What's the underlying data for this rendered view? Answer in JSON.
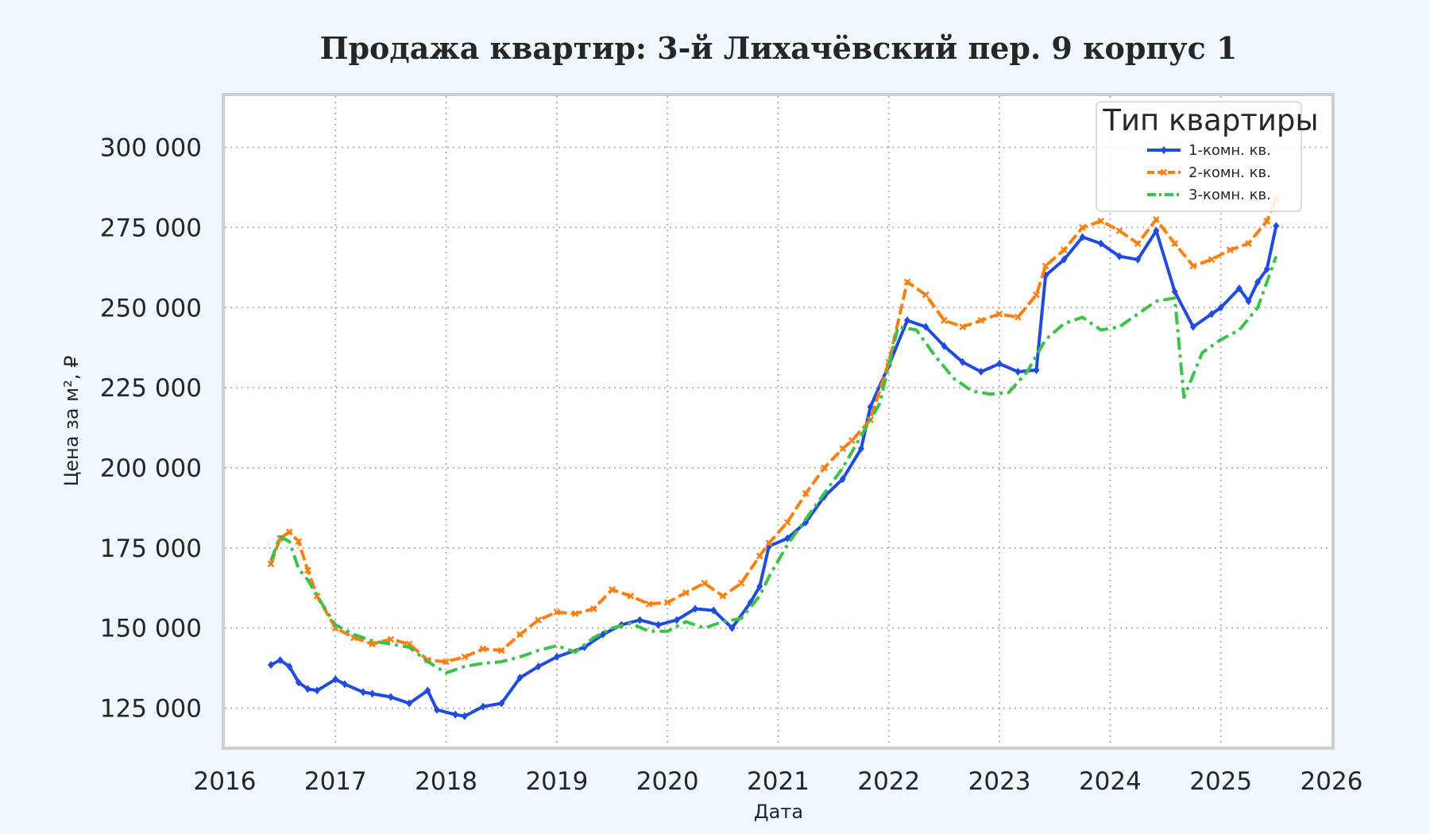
{
  "chart_data": {
    "type": "line",
    "title": "Продажа квартир: 3-й Лихачёвский пер. 9 корпус 1",
    "xlabel": "Дата",
    "ylabel": "Цена за м², ₽",
    "xlim": [
      "2016-01-01",
      "2026-01-01"
    ],
    "ylim": [
      113000,
      316000
    ],
    "x_ticks": [
      "2016",
      "2017",
      "2018",
      "2019",
      "2020",
      "2021",
      "2022",
      "2023",
      "2024",
      "2025",
      "2026"
    ],
    "y_ticks": [
      {
        "value": 125000,
        "label": "125 000"
      },
      {
        "value": 150000,
        "label": "150 000"
      },
      {
        "value": 175000,
        "label": "175 000"
      },
      {
        "value": 200000,
        "label": "200 000"
      },
      {
        "value": 225000,
        "label": "225 000"
      },
      {
        "value": 250000,
        "label": "250 000"
      },
      {
        "value": 275000,
        "label": "275 000"
      },
      {
        "value": 300000,
        "label": "300 000"
      }
    ],
    "grid": true,
    "legend": {
      "title": "Тип квартиры",
      "position": "top-right"
    },
    "series": [
      {
        "name": "1-комн. кв.",
        "color": "#1f4be0",
        "style": "solid",
        "marker": "diamond",
        "x": [
          "2016-06",
          "2016-07",
          "2016-08",
          "2016-09",
          "2016-10",
          "2016-11",
          "2017-01",
          "2017-02",
          "2017-04",
          "2017-05",
          "2017-07",
          "2017-09",
          "2017-11",
          "2017-12",
          "2018-02",
          "2018-03",
          "2018-05",
          "2018-07",
          "2018-09",
          "2018-11",
          "2019-01",
          "2019-04",
          "2019-06",
          "2019-08",
          "2019-10",
          "2019-12",
          "2020-02",
          "2020-04",
          "2020-06",
          "2020-08",
          "2020-10",
          "2020-11",
          "2020-12",
          "2021-02",
          "2021-04",
          "2021-06",
          "2021-08",
          "2021-10",
          "2021-11",
          "2022-01",
          "2022-03",
          "2022-05",
          "2022-07",
          "2022-09",
          "2022-11",
          "2023-01",
          "2023-03",
          "2023-05",
          "2023-06",
          "2023-08",
          "2023-10",
          "2023-12",
          "2024-02",
          "2024-04",
          "2024-06",
          "2024-08",
          "2024-10",
          "2024-12",
          "2025-01",
          "2025-03",
          "2025-04",
          "2025-05",
          "2025-06",
          "2025-07"
        ],
        "values": [
          138500,
          140000,
          138000,
          133000,
          131000,
          130500,
          134000,
          132500,
          130000,
          129500,
          128500,
          126500,
          130500,
          124500,
          123000,
          122500,
          125500,
          126500,
          134500,
          138000,
          141000,
          144000,
          148000,
          151000,
          152500,
          151000,
          152500,
          156000,
          155500,
          150000,
          158000,
          163000,
          175500,
          178000,
          183000,
          191000,
          196500,
          206000,
          219000,
          232000,
          246000,
          244000,
          238000,
          233000,
          230000,
          232500,
          230000,
          230500,
          260000,
          265000,
          272000,
          270000,
          266000,
          265000,
          274000,
          255000,
          244000,
          248000,
          250000,
          256000,
          252000,
          258000,
          262000,
          275500
        ]
      },
      {
        "name": "2-комн. кв.",
        "color": "#ff7f0e",
        "style": "dashed",
        "marker": "x",
        "x": [
          "2016-06",
          "2016-07",
          "2016-08",
          "2016-09",
          "2016-10",
          "2016-11",
          "2017-01",
          "2017-03",
          "2017-05",
          "2017-07",
          "2017-09",
          "2017-11",
          "2018-01",
          "2018-03",
          "2018-05",
          "2018-07",
          "2018-09",
          "2018-11",
          "2019-01",
          "2019-03",
          "2019-05",
          "2019-07",
          "2019-09",
          "2019-11",
          "2020-01",
          "2020-03",
          "2020-05",
          "2020-07",
          "2020-09",
          "2020-11",
          "2020-12",
          "2021-02",
          "2021-04",
          "2021-06",
          "2021-08",
          "2021-09",
          "2021-11",
          "2022-01",
          "2022-03",
          "2022-05",
          "2022-07",
          "2022-09",
          "2022-11",
          "2023-01",
          "2023-03",
          "2023-05",
          "2023-06",
          "2023-08",
          "2023-10",
          "2023-12",
          "2024-02",
          "2024-04",
          "2024-06",
          "2024-08",
          "2024-10",
          "2024-12",
          "2025-02",
          "2025-04",
          "2025-06",
          "2025-07"
        ],
        "values": [
          170000,
          178000,
          180000,
          177000,
          168000,
          160000,
          150000,
          147000,
          145000,
          146500,
          145000,
          140000,
          139500,
          141000,
          143500,
          143000,
          148000,
          152500,
          155000,
          154500,
          156000,
          162000,
          160000,
          157500,
          158000,
          161000,
          164000,
          160000,
          164000,
          172500,
          176500,
          183000,
          192000,
          200000,
          206000,
          208500,
          215000,
          233000,
          258000,
          254000,
          246000,
          244000,
          246000,
          248000,
          247000,
          254000,
          263000,
          268000,
          275000,
          277000,
          274000,
          270000,
          277500,
          270000,
          263000,
          265000,
          268000,
          270000,
          277000,
          284000
        ]
      },
      {
        "name": "3-комн. кв.",
        "color": "#3cc24a",
        "style": "dashdot",
        "marker": "none",
        "x": [
          "2016-06",
          "2016-07",
          "2016-08",
          "2016-09",
          "2016-10",
          "2016-11",
          "2017-01",
          "2017-03",
          "2017-05",
          "2017-07",
          "2017-09",
          "2017-11",
          "2018-01",
          "2018-03",
          "2018-05",
          "2018-07",
          "2018-09",
          "2018-11",
          "2019-01",
          "2019-03",
          "2019-05",
          "2019-07",
          "2019-09",
          "2019-11",
          "2020-01",
          "2020-03",
          "2020-05",
          "2020-07",
          "2020-09",
          "2020-11",
          "2020-12",
          "2021-02",
          "2021-04",
          "2021-06",
          "2021-08",
          "2021-10",
          "2021-12",
          "2022-02",
          "2022-04",
          "2022-06",
          "2022-08",
          "2022-10",
          "2022-12",
          "2023-02",
          "2023-04",
          "2023-06",
          "2023-08",
          "2023-10",
          "2023-12",
          "2024-02",
          "2024-04",
          "2024-06",
          "2024-08",
          "2024-09",
          "2024-11",
          "2025-01",
          "2025-03",
          "2025-05",
          "2025-06",
          "2025-07"
        ],
        "values": [
          171000,
          178500,
          177000,
          168500,
          165000,
          160000,
          151000,
          148000,
          146000,
          145000,
          144000,
          139500,
          136000,
          138000,
          139000,
          139500,
          141000,
          143000,
          144500,
          142500,
          147000,
          150000,
          151500,
          149000,
          149000,
          152000,
          150000,
          152000,
          153000,
          160000,
          166000,
          176000,
          184000,
          192000,
          200000,
          210000,
          220000,
          244000,
          243000,
          235000,
          228000,
          224000,
          223000,
          223500,
          230000,
          240000,
          245000,
          247000,
          243000,
          244000,
          248000,
          252000,
          253000,
          222000,
          236000,
          240000,
          243000,
          250000,
          258000,
          266000
        ]
      }
    ]
  }
}
